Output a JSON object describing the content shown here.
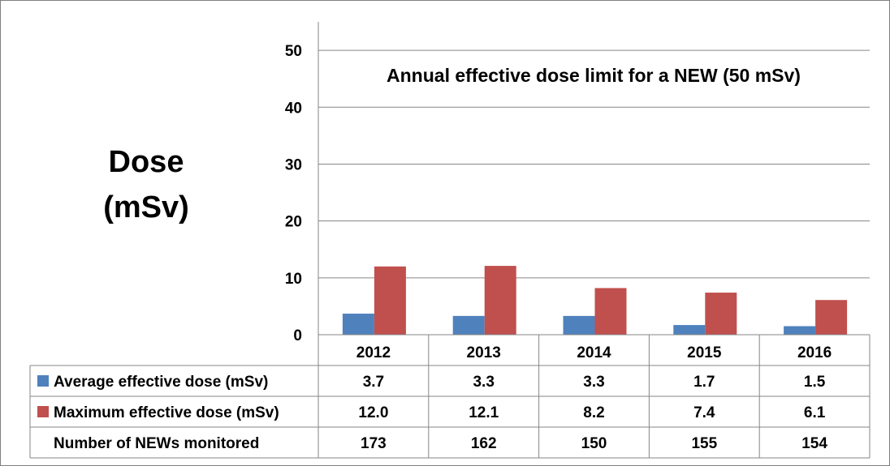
{
  "chart_data": {
    "type": "bar",
    "title": "",
    "ylabel_line1": "Dose",
    "ylabel_line2": "(mSv)",
    "annotation": "Annual effective dose limit for a NEW (50 mSv)",
    "categories": [
      "2012",
      "2013",
      "2014",
      "2015",
      "2016"
    ],
    "ylim": [
      0,
      55
    ],
    "yticks": [
      0,
      10,
      20,
      30,
      40,
      50
    ],
    "grid": true,
    "series": [
      {
        "name": "Average effective dose (mSv)",
        "color": "#4f81bd",
        "values": [
          3.7,
          3.3,
          3.3,
          1.7,
          1.5
        ],
        "labels": [
          "3.7",
          "3.3",
          "3.3",
          "1.7",
          "1.5"
        ]
      },
      {
        "name": "Maximum effective dose (mSv)",
        "color": "#c0504d",
        "values": [
          12.0,
          12.1,
          8.2,
          7.4,
          6.1
        ],
        "labels": [
          "12.0",
          "12.1",
          "8.2",
          "7.4",
          "6.1"
        ]
      }
    ],
    "extra_row": {
      "name": "Number of NEWs monitored",
      "values": [
        "173",
        "162",
        "150",
        "155",
        "154"
      ]
    }
  }
}
